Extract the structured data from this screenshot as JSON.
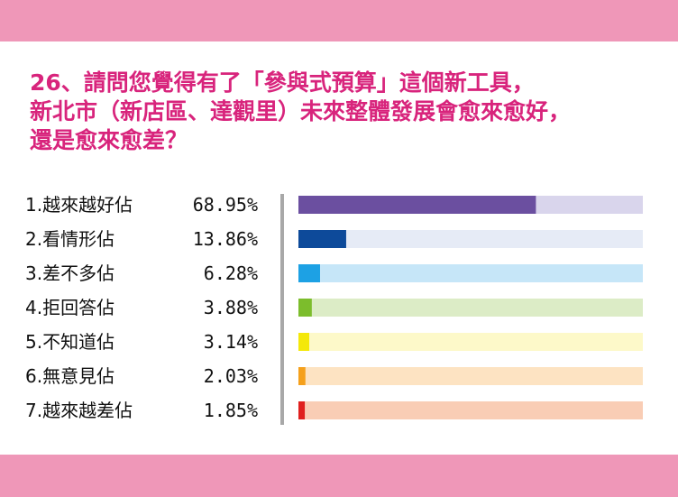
{
  "question": {
    "line1": "26、請問您覺得有了「參與式預算」這個新工具，",
    "line2": "新北市（新店區、達觀里）未來整體發展會愈來愈好，",
    "line3": "還是愈來愈差？"
  },
  "chart_data": {
    "type": "bar",
    "orientation": "horizontal",
    "categories": [
      "1.越來越好佔",
      "2.看情形佔",
      "3.差不多佔",
      "4.拒回答佔",
      "5.不知道佔",
      "6.無意見佔",
      "7.越來越差佔"
    ],
    "values": [
      68.95,
      13.86,
      6.28,
      3.88,
      3.14,
      2.03,
      1.85
    ],
    "value_labels": [
      "68.95%",
      "13.86%",
      "6.28%",
      "3.88%",
      "3.14%",
      "2.03%",
      "1.85%"
    ],
    "xlim": [
      0,
      100
    ],
    "grid": false,
    "bar_colors": [
      "#6b4fa0",
      "#0d4a9a",
      "#1da1e4",
      "#7cbd2c",
      "#f4e80a",
      "#f5a01b",
      "#e0201e"
    ],
    "track_colors": [
      "#d9d5ec",
      "#e6ebf6",
      "#c6e6f8",
      "#dcecc6",
      "#fdf9c9",
      "#fde3c2",
      "#f9cdb5"
    ]
  }
}
